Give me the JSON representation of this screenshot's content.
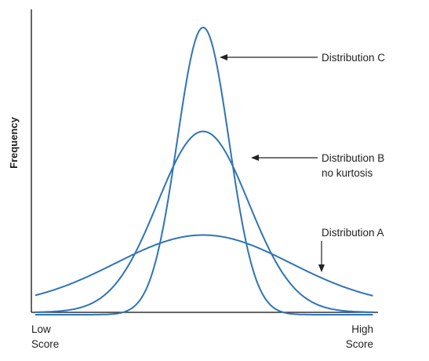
{
  "figure": {
    "y_axis_label": "Frequency",
    "x_axis_low_label": [
      "Low",
      "Score"
    ],
    "x_axis_high_label": [
      "High",
      "Score"
    ],
    "curve_color": "#2f74b5",
    "axis_color": "#333333",
    "curves": [
      {
        "id": "a",
        "label": [
          "Distribution A"
        ],
        "peak": 0.25,
        "spread": "wide"
      },
      {
        "id": "b",
        "label": [
          "Distribution B",
          "no kurtosis"
        ],
        "peak": 0.63,
        "spread": "medium"
      },
      {
        "id": "c",
        "label": [
          "Distribution C"
        ],
        "peak": 1.0,
        "spread": "narrow"
      }
    ]
  }
}
